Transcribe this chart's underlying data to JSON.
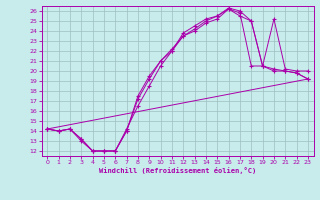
{
  "xlabel": "Windchill (Refroidissement éolien,°C)",
  "bg_color": "#c8ecec",
  "line_color": "#aa00aa",
  "grid_color": "#9fbfbf",
  "xlim": [
    -0.5,
    23.5
  ],
  "ylim": [
    11.5,
    26.5
  ],
  "xticks": [
    0,
    1,
    2,
    3,
    4,
    5,
    6,
    7,
    8,
    9,
    10,
    11,
    12,
    13,
    14,
    15,
    16,
    17,
    18,
    19,
    20,
    21,
    22,
    23
  ],
  "yticks": [
    12,
    13,
    14,
    15,
    16,
    17,
    18,
    19,
    20,
    21,
    22,
    23,
    24,
    25,
    26
  ],
  "lines": [
    {
      "x": [
        0,
        1,
        2,
        3,
        4,
        5,
        6,
        7,
        8,
        9,
        10,
        11,
        12,
        13,
        14,
        15,
        16,
        17,
        18,
        19,
        20,
        21,
        22,
        23
      ],
      "y": [
        14.2,
        14.0,
        14.2,
        13.2,
        12.0,
        12.0,
        12.0,
        14.0,
        17.5,
        19.5,
        21.0,
        22.0,
        23.5,
        24.0,
        24.8,
        25.2,
        26.2,
        25.5,
        25.0,
        20.5,
        20.0,
        20.0,
        19.8,
        19.2
      ]
    },
    {
      "x": [
        0,
        1,
        2,
        3,
        4,
        5,
        6,
        7,
        8,
        9,
        10,
        11,
        12,
        13,
        14,
        15,
        16,
        17,
        18,
        19,
        20,
        21,
        22,
        23
      ],
      "y": [
        14.2,
        14.0,
        14.2,
        13.2,
        12.0,
        12.0,
        12.0,
        14.2,
        16.5,
        18.5,
        20.5,
        22.0,
        23.8,
        24.5,
        25.2,
        25.5,
        26.3,
        26.0,
        25.0,
        20.5,
        20.2,
        20.0,
        19.8,
        19.2
      ]
    },
    {
      "x": [
        0,
        1,
        2,
        3,
        4,
        5,
        6,
        7,
        8,
        9,
        10,
        11,
        12,
        13,
        14,
        15,
        16,
        17,
        18,
        19,
        20,
        21,
        22,
        23
      ],
      "y": [
        14.2,
        14.0,
        14.2,
        13.0,
        12.0,
        12.0,
        12.0,
        14.0,
        17.2,
        19.2,
        21.0,
        22.2,
        23.5,
        24.2,
        25.0,
        25.5,
        26.2,
        25.8,
        20.5,
        20.5,
        25.2,
        20.2,
        20.0,
        20.0
      ]
    },
    {
      "comment": "straight diagonal from (0,14.2) to (23,19.2)",
      "x": [
        0,
        23
      ],
      "y": [
        14.2,
        19.2
      ]
    }
  ]
}
